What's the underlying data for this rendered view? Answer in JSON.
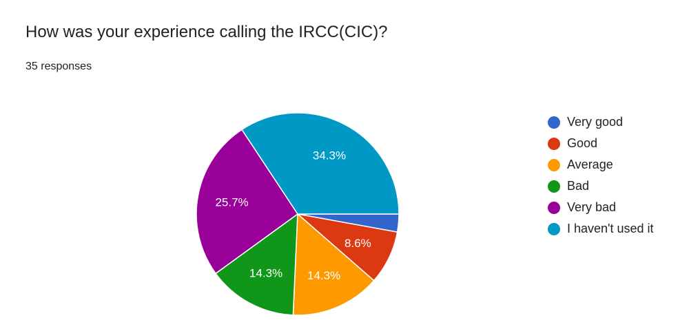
{
  "header": {
    "title": "How was your experience calling the IRCC(CIC)?",
    "responses": "35 responses"
  },
  "chart_data": {
    "type": "pie",
    "total_responses": 35,
    "categories": [
      "Very good",
      "Good",
      "Average",
      "Bad",
      "Very bad",
      "I haven't used it"
    ],
    "values": [
      1,
      3,
      5,
      5,
      9,
      12
    ],
    "labels": [
      "",
      "8.6%",
      "14.3%",
      "14.3%",
      "25.7%",
      "34.3%"
    ],
    "colors": [
      "#3366cc",
      "#dc3912",
      "#ff9900",
      "#109618",
      "#990099",
      "#0099c6"
    ],
    "legend_position": "right"
  }
}
